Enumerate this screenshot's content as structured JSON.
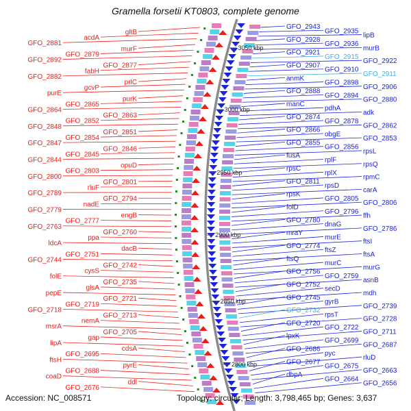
{
  "title": "Gramella forsetii KT0803, complete genome",
  "footer": {
    "accession": "Accession: NC_008571",
    "topology": "Topology: circular;",
    "length": "Length: 3,798,465 bp;",
    "genes": "Genes: 3,637"
  },
  "colors": {
    "left_strand": "#e8201a",
    "right_strand": "#1a24d8",
    "highlight": "#3fb0e0",
    "backbone": "#8a8a8a",
    "tick": "#1f8a1f"
  },
  "scale_marks": [
    "3050 kbp",
    "3000 kbp",
    "2950 kbp",
    "2900 kbp",
    "2850 kbp",
    "2800 kbp"
  ],
  "left_labels": [
    "gltB",
    "acdA",
    "GFO_2881",
    "murF",
    "GFO_2879",
    "GFO_2892",
    "GFO_2877",
    "fabH",
    "GFO_2882",
    "prlC",
    "gcvP",
    "purE",
    "purK",
    "GFO_2865",
    "GFO_2864",
    "GFO_2863",
    "GFO_2852",
    "GFO_2848",
    "GFO_2851",
    "GFO_2854",
    "GFO_2847",
    "GFO_2846",
    "GFO_2845",
    "GFO_2844",
    "opuD",
    "GFO_2803",
    "GFO_2800",
    "GFO_2801",
    "rluF",
    "GFO_2789",
    "GFO_2794",
    "nadE",
    "GFO_2779",
    "engB",
    "GFO_2777",
    "GFO_2763",
    "GFO_2760",
    "ppa",
    "ldcA",
    "dacB",
    "GFO_2751",
    "GFO_2744",
    "GFO_2742",
    "cysS",
    "folE",
    "GFO_2735",
    "glsA",
    "pepE",
    "GFO_2721",
    "GFO_2719",
    "GFO_2718",
    "GFO_2713",
    "nemA",
    "msrA",
    "GFO_2705",
    "gap",
    "lipA",
    "cdsA",
    "GFO_2695",
    "ftsH",
    "pyrE",
    "GFO_2688",
    "coaD",
    "ddl",
    "GFO_2676"
  ],
  "right_labels": [
    "GFO_2943",
    "GFO_2935",
    "lipB",
    "GFO_2928",
    "GFO_2936",
    "murB",
    "GFO_2921",
    "GFO_2915",
    "GFO_2922",
    "GFO_2907",
    "GFO_2910",
    "GFO_2911",
    "anmK",
    "GFO_2898",
    "GFO_2906",
    "GFO_2888",
    "GFO_2894",
    "GFO_2880",
    "manC",
    "pdhA",
    "adk",
    "GFO_2874",
    "GFO_2878",
    "GFO_2862",
    "GFO_2866",
    "obgE",
    "GFO_2853",
    "GFO_2855",
    "GFO_2856",
    "rpsL",
    "fusA",
    "rplF",
    "rpsQ",
    "rpsC",
    "rplX",
    "rpmC",
    "GFO_2811",
    "rpsD",
    "carA",
    "rpsK",
    "GFO_2805",
    "GFO_2806",
    "folD",
    "GFO_2796",
    "ffh",
    "GFO_2780",
    "dnaG",
    "GFO_2786",
    "mraY",
    "murE",
    "ftsI",
    "GFO_2774",
    "ftsZ",
    "ftsA",
    "ftsQ",
    "murC",
    "murG",
    "GFO_2756",
    "GFO_2759",
    "asnB",
    "GFO_2752",
    "secD",
    "mdh",
    "GFO_2745",
    "gyrB",
    "GFO_2739",
    "GFO_2732",
    "rpsT",
    "GFO_2728",
    "GFO_2720",
    "GFO_2722",
    "GFO_2711",
    "lpxK",
    "GFO_2699",
    "GFO_2687",
    "GFO_2686",
    "pyc",
    "rluD",
    "GFO_2677",
    "GFO_2675",
    "GFO_2663",
    "dbpA",
    "GFO_2664",
    "GFO_2656"
  ]
}
